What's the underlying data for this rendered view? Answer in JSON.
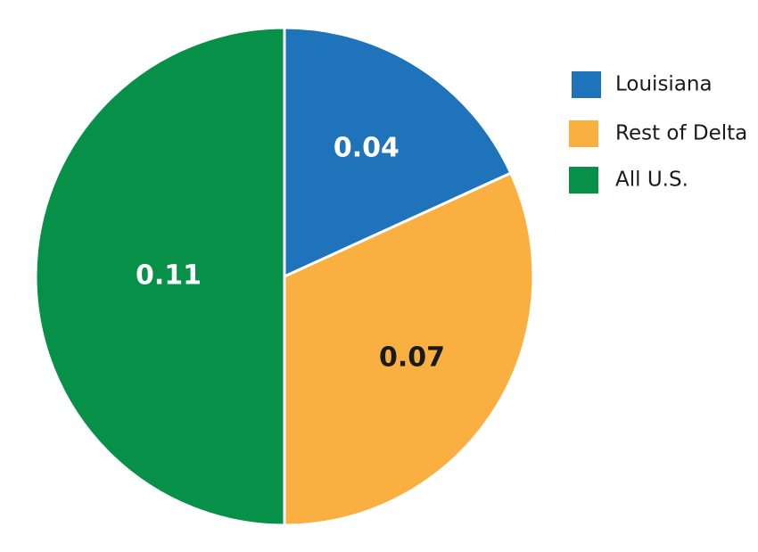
{
  "chart_data": {
    "type": "pie",
    "categories": [
      "Louisiana",
      "Rest of Delta",
      "All U.S."
    ],
    "values": [
      0.04,
      0.07,
      0.11
    ],
    "colors": [
      "#1f73ba",
      "#f9b041",
      "#079048"
    ],
    "label_colors": [
      "#ffffff",
      "#1a1a1a",
      "#ffffff"
    ],
    "legend": "upper right"
  }
}
